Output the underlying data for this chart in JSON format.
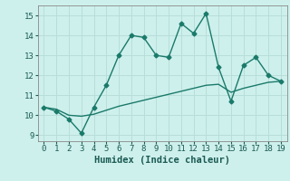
{
  "x": [
    0,
    1,
    2,
    3,
    4,
    5,
    6,
    7,
    8,
    9,
    10,
    11,
    12,
    13,
    14,
    15,
    16,
    17,
    18,
    19
  ],
  "y_jagged": [
    10.4,
    10.2,
    9.8,
    9.1,
    10.4,
    11.5,
    13.0,
    14.0,
    13.9,
    13.0,
    12.9,
    14.6,
    14.1,
    15.1,
    12.4,
    10.7,
    12.5,
    12.9,
    12.0,
    11.7
  ],
  "y_trend": [
    10.4,
    10.3,
    10.0,
    9.95,
    10.05,
    10.25,
    10.45,
    10.6,
    10.75,
    10.9,
    11.05,
    11.2,
    11.35,
    11.5,
    11.55,
    11.15,
    11.35,
    11.5,
    11.65,
    11.7
  ],
  "line_color": "#1a7a6a",
  "bg_color": "#cef0ec",
  "grid_color": "#b8deda",
  "xlabel": "Humidex (Indice chaleur)",
  "ylim": [
    8.7,
    15.5
  ],
  "xlim": [
    -0.5,
    19.5
  ],
  "yticks": [
    9,
    10,
    11,
    12,
    13,
    14,
    15
  ],
  "xticks": [
    0,
    1,
    2,
    3,
    4,
    5,
    6,
    7,
    8,
    9,
    10,
    11,
    12,
    13,
    14,
    15,
    16,
    17,
    18,
    19
  ],
  "markersize": 2.5,
  "linewidth": 1.0,
  "tick_fontsize": 6.5,
  "xlabel_fontsize": 7.5
}
